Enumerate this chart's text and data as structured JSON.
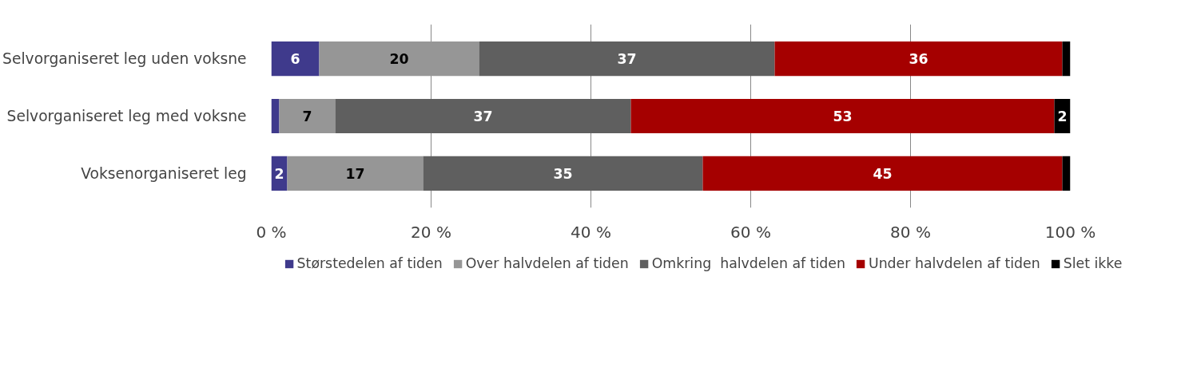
{
  "chart_data": {
    "type": "bar",
    "orientation": "horizontal",
    "stacked": true,
    "categories": [
      "Selvorganiseret leg uden voksne",
      "Selvorganiseret leg med voksne",
      "Voksenorganiseret leg"
    ],
    "series": [
      {
        "name": "Størstedelen af tiden",
        "color": "#3f3a8c",
        "values": [
          6,
          1,
          2
        ],
        "value_labels": [
          "6",
          null,
          "2"
        ]
      },
      {
        "name": "Over halvdelen af tiden",
        "color": "#969696",
        "values": [
          20,
          7,
          17
        ],
        "value_labels": [
          "20",
          "7",
          "17"
        ]
      },
      {
        "name": "Omkring  halvdelen af tiden",
        "color": "#5f5f5f",
        "values": [
          37,
          37,
          35
        ],
        "value_labels": [
          "37",
          "37",
          "35"
        ]
      },
      {
        "name": "Under halvdelen af tiden",
        "color": "#a50000",
        "values": [
          36,
          53,
          45
        ],
        "value_labels": [
          "36",
          "53",
          "45"
        ]
      },
      {
        "name": "Slet ikke",
        "color": "#000000",
        "values": [
          1,
          2,
          1
        ],
        "value_labels": [
          null,
          "2",
          null
        ]
      }
    ],
    "xlim": [
      0,
      100
    ],
    "xticks": [
      {
        "value": 0,
        "label": "0 %"
      },
      {
        "value": 20,
        "label": "20 %"
      },
      {
        "value": 40,
        "label": "40 %"
      },
      {
        "value": 60,
        "label": "60 %"
      },
      {
        "value": 80,
        "label": "80 %"
      },
      {
        "value": 100,
        "label": "100 %"
      }
    ],
    "grid": "x",
    "legend": "bottom"
  }
}
